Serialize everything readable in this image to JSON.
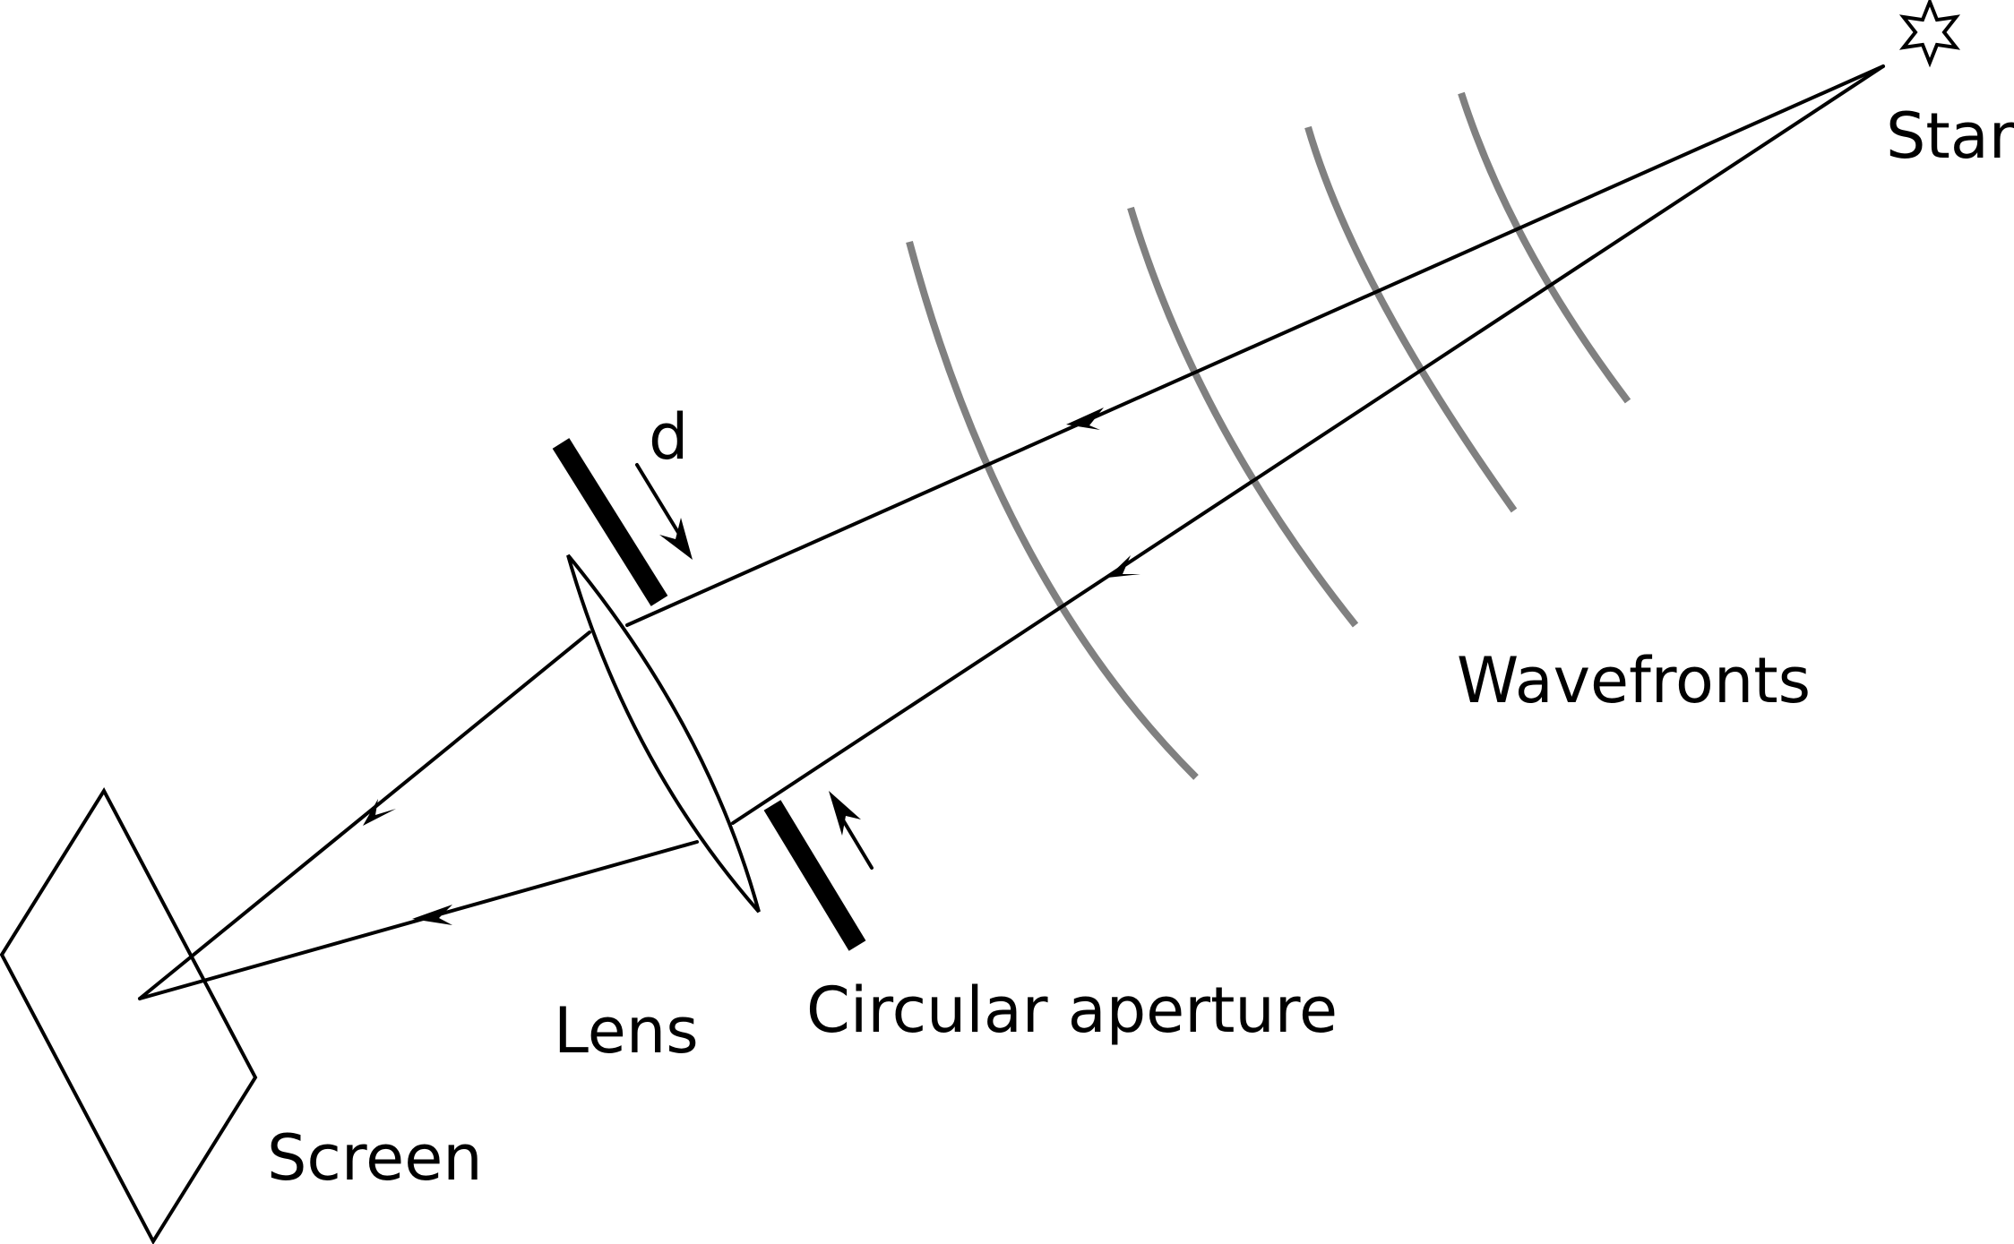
{
  "labels": {
    "star": "Star",
    "wavefronts": "Wavefronts",
    "d": "d",
    "lens": "Lens",
    "aperture": "Circular aperture",
    "screen": "Screen"
  },
  "colors": {
    "ink": "#000000",
    "wavefront": "#808080",
    "background": "#ffffff"
  }
}
